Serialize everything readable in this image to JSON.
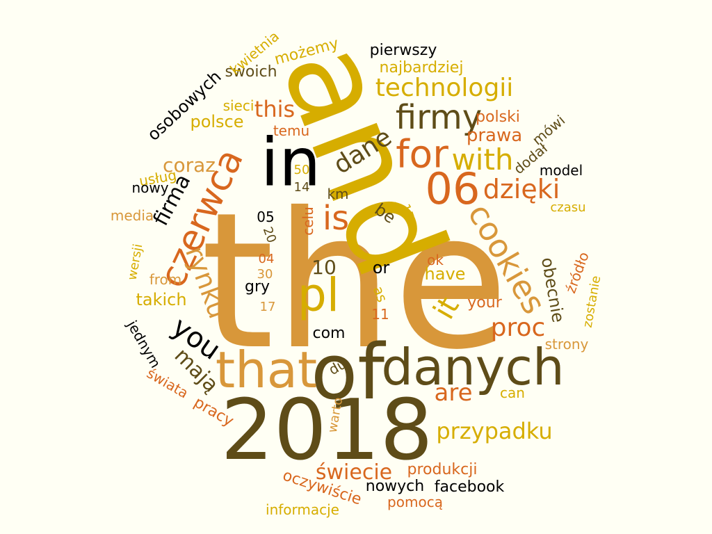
{
  "colors": {
    "background": "#fffff4",
    "gold": "#d6ad00",
    "tan": "#d8973a",
    "orange": "#d8671e",
    "olive": "#5e4c18",
    "black": "#000000"
  },
  "words": [
    {
      "text": "the",
      "color": "tan"
    },
    {
      "text": "and",
      "color": "gold"
    },
    {
      "text": "2018",
      "color": "olive"
    },
    {
      "text": "of",
      "color": "olive"
    },
    {
      "text": "in",
      "color": "black"
    },
    {
      "text": "danych",
      "color": "olive"
    },
    {
      "text": "that",
      "color": "tan"
    },
    {
      "text": "pl",
      "color": "gold"
    },
    {
      "text": "06",
      "color": "orange"
    },
    {
      "text": "for",
      "color": "orange"
    },
    {
      "text": "czerwca",
      "color": "orange"
    },
    {
      "text": "firmy",
      "color": "olive"
    },
    {
      "text": "is",
      "color": "orange"
    },
    {
      "text": "cookies",
      "color": "tan"
    },
    {
      "text": "with",
      "color": "gold"
    },
    {
      "text": "it",
      "color": "gold"
    },
    {
      "text": "you",
      "color": "black"
    },
    {
      "text": "rynku",
      "color": "tan"
    },
    {
      "text": "dzięki",
      "color": "orange"
    },
    {
      "text": "technologii",
      "color": "gold"
    },
    {
      "text": "dane",
      "color": "olive"
    },
    {
      "text": "proc",
      "color": "orange"
    },
    {
      "text": "are",
      "color": "orange"
    },
    {
      "text": "przypadku",
      "color": "gold"
    },
    {
      "text": "this",
      "color": "orange"
    },
    {
      "text": "mają",
      "color": "olive"
    },
    {
      "text": "świecie",
      "color": "orange"
    },
    {
      "text": "firma",
      "color": "black"
    },
    {
      "text": "coraz",
      "color": "tan"
    },
    {
      "text": "10",
      "color": "olive"
    },
    {
      "text": "prawa",
      "color": "orange"
    },
    {
      "text": "obecnie",
      "color": "olive"
    },
    {
      "text": "takich",
      "color": "gold"
    },
    {
      "text": "pierwszy",
      "color": "black"
    },
    {
      "text": "najbardziej",
      "color": "gold"
    },
    {
      "text": "swoich",
      "color": "olive"
    },
    {
      "text": "możemy",
      "color": "gold"
    },
    {
      "text": "kwietnia",
      "color": "gold"
    },
    {
      "text": "osobowych",
      "color": "black"
    },
    {
      "text": "sieci",
      "color": "gold"
    },
    {
      "text": "polsce",
      "color": "gold"
    },
    {
      "text": "temu",
      "color": "orange"
    },
    {
      "text": "polski",
      "color": "orange"
    },
    {
      "text": "mówi",
      "color": "olive"
    },
    {
      "text": "dodał",
      "color": "olive"
    },
    {
      "text": "model",
      "color": "black"
    },
    {
      "text": "usług",
      "color": "gold"
    },
    {
      "text": "nowy",
      "color": "black"
    },
    {
      "text": "50",
      "color": "gold"
    },
    {
      "text": "14",
      "color": "olive"
    },
    {
      "text": "km",
      "color": "olive"
    },
    {
      "text": "at",
      "color": "gold"
    },
    {
      "text": "15",
      "color": "gold"
    },
    {
      "text": "be",
      "color": "olive"
    },
    {
      "text": "czasu",
      "color": "gold"
    },
    {
      "text": "media",
      "color": "tan"
    },
    {
      "text": "05",
      "color": "black"
    },
    {
      "text": "20",
      "color": "olive"
    },
    {
      "text": "celu",
      "color": "orange"
    },
    {
      "text": "wersji",
      "color": "gold"
    },
    {
      "text": "04",
      "color": "orange"
    },
    {
      "text": "30",
      "color": "tan"
    },
    {
      "text": "or",
      "color": "black"
    },
    {
      "text": "ok",
      "color": "orange"
    },
    {
      "text": "have",
      "color": "gold"
    },
    {
      "text": "źródło",
      "color": "orange"
    },
    {
      "text": "from",
      "color": "tan"
    },
    {
      "text": "gry",
      "color": "black"
    },
    {
      "text": "as",
      "color": "gold"
    },
    {
      "text": "your",
      "color": "orange"
    },
    {
      "text": "zostanie",
      "color": "gold"
    },
    {
      "text": "17",
      "color": "tan"
    },
    {
      "text": "11",
      "color": "orange"
    },
    {
      "text": "jednym",
      "color": "black"
    },
    {
      "text": "com",
      "color": "black"
    },
    {
      "text": "strony",
      "color": "tan"
    },
    {
      "text": "np",
      "color": "olive"
    },
    {
      "text": "świata",
      "color": "orange"
    },
    {
      "text": "can",
      "color": "gold"
    },
    {
      "text": "pracy",
      "color": "orange"
    },
    {
      "text": "warto",
      "color": "tan"
    },
    {
      "text": "produkcji",
      "color": "orange"
    },
    {
      "text": "oczywiście",
      "color": "orange"
    },
    {
      "text": "nowych",
      "color": "black"
    },
    {
      "text": "facebook",
      "color": "black"
    },
    {
      "text": "pomocą",
      "color": "orange"
    },
    {
      "text": "informacje",
      "color": "gold"
    }
  ]
}
